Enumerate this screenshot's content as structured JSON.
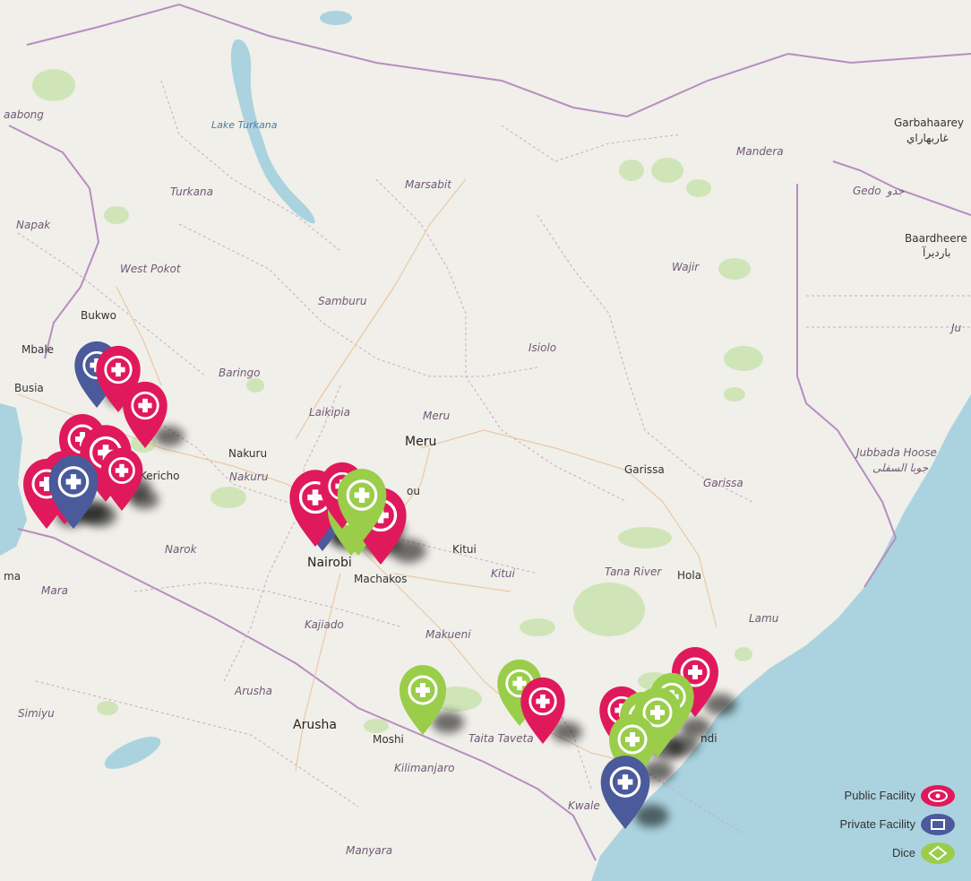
{
  "map": {
    "colors": {
      "land": "#f1efe9",
      "water": "#aad3df",
      "public": "#e0195c",
      "private": "#4a5a9b",
      "dice": "#9acd4a"
    },
    "labels": {
      "lake_turkana": "Lake Turkana",
      "garbahaarey": "Garbahaarey",
      "garbahaarey_ar": "غاربهاراي",
      "mandera": "Mandera",
      "abong": "aabong",
      "turkana": "Turkana",
      "marsabit": "Marsabit",
      "gedo": "Gedo",
      "gedo_ar": "جدو",
      "baardheere": "Baardheere",
      "baardheere_ar": "باردیرآ",
      "napak": "Napak",
      "west_pokot": "West Pokot",
      "wajir": "Wajir",
      "samburu": "Samburu",
      "bukwo": "Bukwo",
      "mbale": "Mbale",
      "isiolo": "Isiolo",
      "baringo": "Baringo",
      "busia": "Busia",
      "laikipia": "Laikipia",
      "meru_county": "Meru",
      "meru_city": "Meru",
      "nakuru_city": "Nakuru",
      "nakuru_county": "Nakuru",
      "kericho": "Kericho",
      "jubbada_hoose": "Jubbada Hoose",
      "jubbada_hoose_ar": "جوبا السفلى",
      "garissa_city": "Garissa",
      "garissa_county": "Garissa",
      "kitui_city": "Kitui",
      "kitui_county": "Kitui",
      "narok": "Narok",
      "nairobi": "Nairobi",
      "machakos": "Machakos",
      "tana_river": "Tana River",
      "hola": "Hola",
      "ma": "ma",
      "mara": "Mara",
      "lamu": "Lamu",
      "kajiado": "Kajiado",
      "makueni": "Makueni",
      "arusha_region": "Arusha",
      "simiyu": "Simiyu",
      "arusha_city": "Arusha",
      "moshi": "Moshi",
      "taita_taveta": "Taita Taveta",
      "kilimanjaro": "Kilimanjaro",
      "kwale": "Kwale",
      "manyara": "Manyara",
      "jo": "Ju",
      "ndi": "ndi",
      "ou": "ou"
    }
  },
  "legend": {
    "items": [
      {
        "label": "Public Facility",
        "type": "public"
      },
      {
        "label": "Private Facility",
        "type": "private"
      },
      {
        "label": "Dice",
        "type": "dice"
      }
    ]
  },
  "markers": [
    {
      "type": "private",
      "count": 1
    },
    {
      "type": "public",
      "count": 1
    }
  ]
}
